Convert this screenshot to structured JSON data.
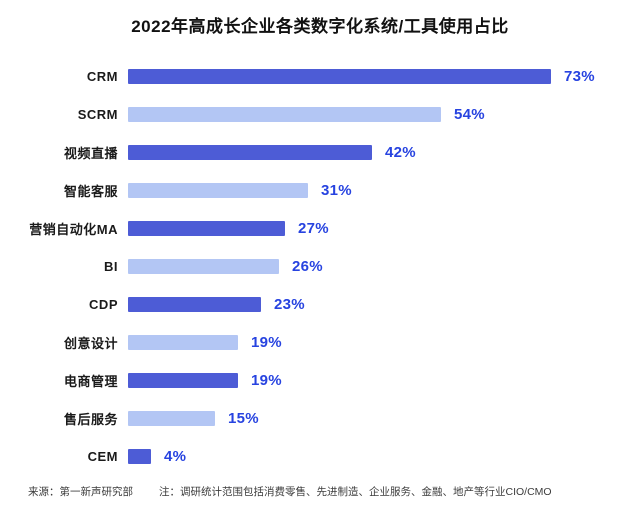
{
  "title": "2022年高成长企业各类数字化系统/工具使用占比",
  "footer": {
    "source": "来源：第一新声研究部",
    "note": "注：调研统计范围包括消费零售、先进制造、企业服务、金融、地产等行业CIO/CMO"
  },
  "colors": {
    "bar_dark": "#4d5cd6",
    "bar_light": "#b3c6f4",
    "value_label": "#2743e0"
  },
  "chart_data": {
    "type": "bar",
    "orientation": "horizontal",
    "title": "2022年高成长企业各类数字化系统/工具使用占比",
    "categories": [
      "CRM",
      "SCRM",
      "视频直播",
      "智能客服",
      "营销自动化MA",
      "BI",
      "CDP",
      "创意设计",
      "电商管理",
      "售后服务",
      "CEM"
    ],
    "values": [
      73,
      54,
      42,
      31,
      27,
      26,
      23,
      19,
      19,
      15,
      4
    ],
    "value_suffix": "%",
    "xlim": [
      0,
      100
    ],
    "grid": false,
    "legend": false,
    "bar_colors_alternate": [
      "#4d5cd6",
      "#b3c6f4"
    ],
    "value_labels_shown": true
  }
}
